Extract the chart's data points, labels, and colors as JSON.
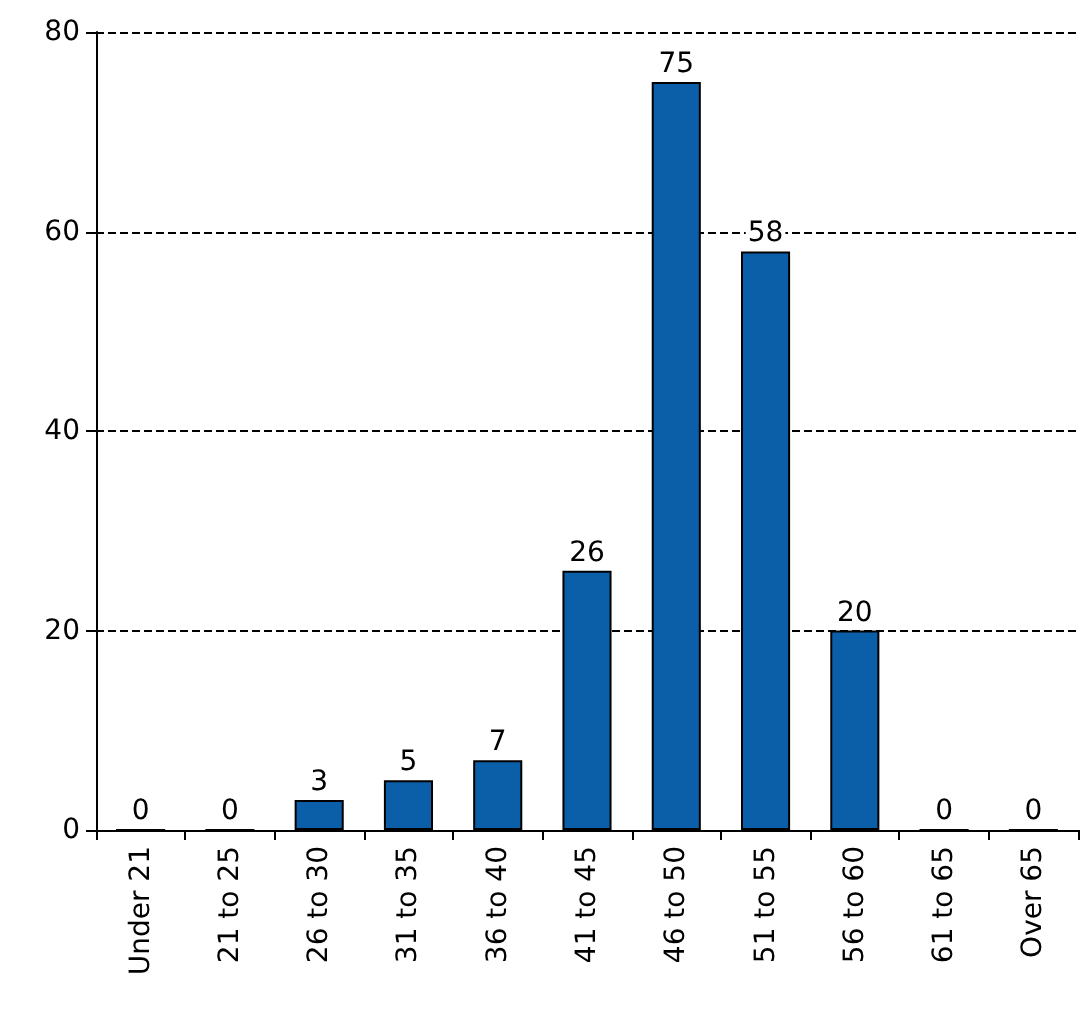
{
  "chart_data": {
    "type": "bar",
    "categories": [
      "Under 21",
      "21 to 25",
      "26 to 30",
      "31 to 35",
      "36 to 40",
      "41 to 45",
      "46 to 50",
      "51 to 55",
      "56 to 60",
      "61 to 65",
      "Over 65"
    ],
    "values": [
      0,
      0,
      3,
      5,
      7,
      26,
      75,
      58,
      20,
      0,
      0
    ],
    "color": "#0b5ea8",
    "ylim": [
      0,
      80
    ],
    "yticks": [
      0,
      20,
      40,
      60,
      80
    ],
    "grid": "y",
    "data_labels": true
  }
}
